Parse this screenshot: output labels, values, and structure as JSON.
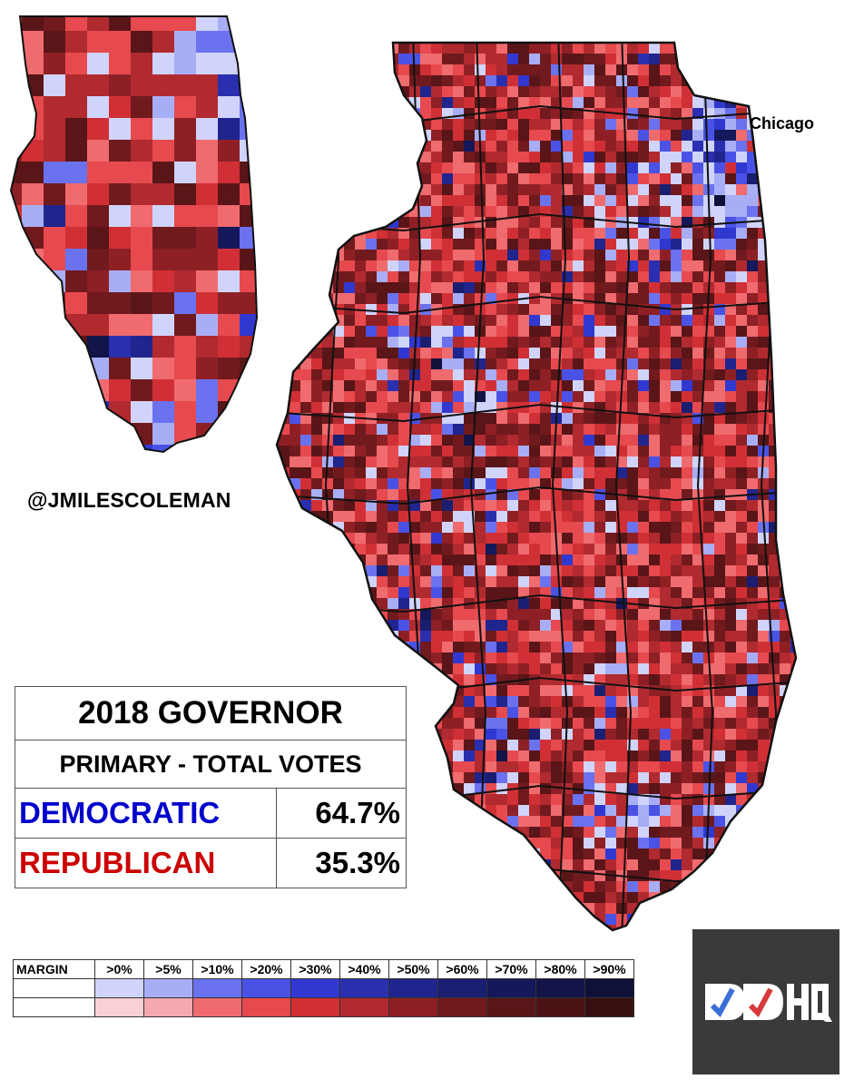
{
  "handle": "@JMILESCOLEMAN",
  "city_label": "Chicago",
  "table": {
    "title": "2018 GOVERNOR",
    "subtitle": "PRIMARY - TOTAL VOTES",
    "rows": [
      {
        "party": "DEMOCRATIC",
        "pct": "64.7%",
        "color": "#0000cc"
      },
      {
        "party": "REPUBLICAN",
        "pct": "35.3%",
        "color": "#cc0000"
      }
    ]
  },
  "legend": {
    "header": "MARGIN",
    "bins": [
      ">0%",
      ">5%",
      ">10%",
      ">20%",
      ">30%",
      ">40%",
      ">50%",
      ">60%",
      ">70%",
      ">80%",
      ">90%"
    ],
    "dem_colors": [
      "#d0d4fa",
      "#a8aef5",
      "#6b72ef",
      "#4a52e6",
      "#3038d0",
      "#2a2fb0",
      "#20258e",
      "#1a1e70",
      "#15185a",
      "#12144a",
      "#0f1138"
    ],
    "rep_colors": [
      "#fad0d4",
      "#f5a8ae",
      "#ef6b6e",
      "#e64a4e",
      "#d03035",
      "#b02a2f",
      "#8e2025",
      "#701a1e",
      "#5a1518",
      "#4a1214",
      "#381011"
    ]
  },
  "logo_text": "DDHQ"
}
